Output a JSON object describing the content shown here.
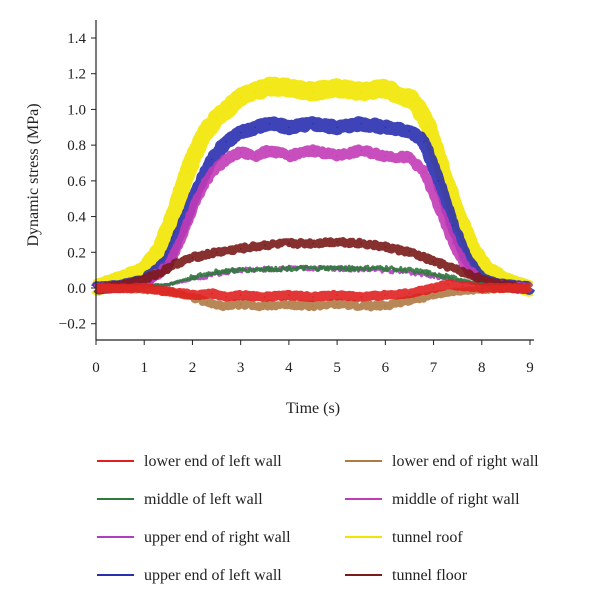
{
  "chart_data": {
    "type": "line",
    "title": "",
    "xlabel": "Time (s)",
    "ylabel": "Dynamic stress (MPa)",
    "xlim": [
      0,
      9
    ],
    "ylim": [
      -0.3,
      1.5
    ],
    "xticks": [
      "0",
      "1",
      "2",
      "3",
      "4",
      "5",
      "6",
      "7",
      "8",
      "9"
    ],
    "yticks": [
      "−0.2",
      "0.0",
      "0.2",
      "0.4",
      "0.6",
      "0.8",
      "1.0",
      "1.2",
      "1.4"
    ],
    "ytick_values": [
      -0.2,
      0.0,
      0.2,
      0.4,
      0.6,
      0.8,
      1.0,
      1.2,
      1.4
    ],
    "grid": false,
    "legend_position": "bottom",
    "series": [
      {
        "name": "tunnel roof",
        "color": "#f2e600",
        "x": [
          0,
          0.4,
          0.8,
          1.0,
          1.3,
          1.6,
          1.9,
          2.2,
          2.5,
          2.8,
          3.0,
          3.3,
          3.6,
          4.0,
          4.5,
          5.0,
          5.5,
          6.0,
          6.3,
          6.6,
          6.9,
          7.2,
          7.5,
          7.8,
          8.1,
          8.4,
          8.7,
          9.0
        ],
        "y": [
          0,
          0.04,
          0.07,
          0.1,
          0.2,
          0.4,
          0.65,
          0.85,
          0.95,
          1.02,
          1.07,
          1.1,
          1.13,
          1.12,
          1.1,
          1.12,
          1.1,
          1.12,
          1.08,
          1.05,
          0.9,
          0.65,
          0.42,
          0.22,
          0.1,
          0.05,
          0.02,
          0
        ]
      },
      {
        "name": "upper end of left wall",
        "color": "#2a2fb0",
        "x": [
          0,
          0.5,
          1.0,
          1.5,
          1.8,
          2.1,
          2.4,
          2.7,
          3.0,
          3.3,
          3.6,
          4.0,
          4.5,
          5.0,
          5.5,
          6.0,
          6.5,
          6.8,
          7.1,
          7.4,
          7.7,
          8.0,
          8.3,
          8.6,
          9.0
        ],
        "y": [
          0,
          0.01,
          0.04,
          0.15,
          0.35,
          0.55,
          0.72,
          0.82,
          0.87,
          0.9,
          0.92,
          0.9,
          0.92,
          0.9,
          0.92,
          0.9,
          0.88,
          0.82,
          0.6,
          0.35,
          0.15,
          0.05,
          0.02,
          0.01,
          0
        ]
      },
      {
        "name": "middle of right wall",
        "color": "#c23bb6",
        "x": [
          0,
          0.5,
          1.0,
          1.5,
          1.8,
          2.1,
          2.4,
          2.7,
          3.0,
          3.3,
          3.6,
          4.0,
          4.5,
          5.0,
          5.5,
          6.0,
          6.5,
          6.8,
          7.1,
          7.4,
          7.7,
          8.0,
          8.5,
          9.0
        ],
        "y": [
          0,
          0.01,
          0.03,
          0.12,
          0.3,
          0.5,
          0.65,
          0.72,
          0.76,
          0.74,
          0.77,
          0.74,
          0.77,
          0.74,
          0.77,
          0.74,
          0.73,
          0.65,
          0.45,
          0.25,
          0.1,
          0.04,
          0.01,
          0
        ]
      },
      {
        "name": "upper end of right wall",
        "color": "#b03cc0",
        "x": [
          0,
          1.0,
          1.5,
          2.0,
          2.5,
          3.0,
          4.0,
          5.0,
          6.0,
          6.5,
          7.0,
          7.5,
          8.0,
          9.0
        ],
        "y": [
          0,
          0.01,
          0.02,
          0.05,
          0.08,
          0.1,
          0.11,
          0.11,
          0.1,
          0.09,
          0.07,
          0.04,
          0.02,
          0
        ]
      },
      {
        "name": "tunnel floor",
        "color": "#7a1a1a",
        "x": [
          0,
          0.5,
          1.0,
          1.3,
          1.6,
          2.0,
          2.5,
          3.0,
          3.5,
          4.0,
          4.5,
          5.0,
          5.5,
          6.0,
          6.5,
          7.0,
          7.5,
          8.0,
          8.5,
          9.0
        ],
        "y": [
          0,
          0.02,
          0.05,
          0.08,
          0.13,
          0.17,
          0.2,
          0.22,
          0.24,
          0.25,
          0.25,
          0.26,
          0.25,
          0.23,
          0.2,
          0.15,
          0.1,
          0.05,
          0.02,
          0
        ]
      },
      {
        "name": "middle of left wall",
        "color": "#2e7a3a",
        "x": [
          0,
          1.0,
          1.5,
          2.0,
          2.5,
          3.0,
          4.0,
          5.0,
          6.0,
          6.5,
          7.0,
          7.5,
          8.0,
          9.0
        ],
        "y": [
          0,
          0.01,
          0.02,
          0.06,
          0.09,
          0.1,
          0.11,
          0.11,
          0.11,
          0.1,
          0.08,
          0.05,
          0.02,
          0
        ]
      },
      {
        "name": "lower end of right wall",
        "color": "#b07a45",
        "x": [
          0,
          1.0,
          1.5,
          2.0,
          2.3,
          2.6,
          3.0,
          3.5,
          4.0,
          4.5,
          5.0,
          5.5,
          6.0,
          6.3,
          6.6,
          7.0,
          7.5,
          8.0,
          9.0
        ],
        "y": [
          0,
          -0.01,
          -0.02,
          -0.05,
          -0.08,
          -0.1,
          -0.09,
          -0.1,
          -0.09,
          -0.1,
          -0.09,
          -0.1,
          -0.1,
          -0.08,
          -0.06,
          -0.04,
          -0.02,
          -0.01,
          0
        ]
      },
      {
        "name": "lower end of left wall",
        "color": "#e02020",
        "x": [
          0,
          1.0,
          1.5,
          1.8,
          2.1,
          2.4,
          2.7,
          3.0,
          3.5,
          4.0,
          4.5,
          5.0,
          5.5,
          6.0,
          6.5,
          7.0,
          7.3,
          7.6,
          8.0,
          9.0
        ],
        "y": [
          0,
          0.0,
          -0.02,
          -0.03,
          -0.04,
          -0.03,
          -0.05,
          -0.04,
          -0.05,
          -0.04,
          -0.05,
          -0.04,
          -0.05,
          -0.04,
          -0.03,
          0.0,
          0.02,
          0.01,
          0.0,
          0
        ]
      }
    ],
    "legend_order": [
      "lower end of left wall",
      "lower end of right wall",
      "middle of left wall",
      "middle of right wall",
      "upper end of right wall",
      "tunnel roof",
      "upper end of left wall",
      "tunnel floor"
    ]
  }
}
